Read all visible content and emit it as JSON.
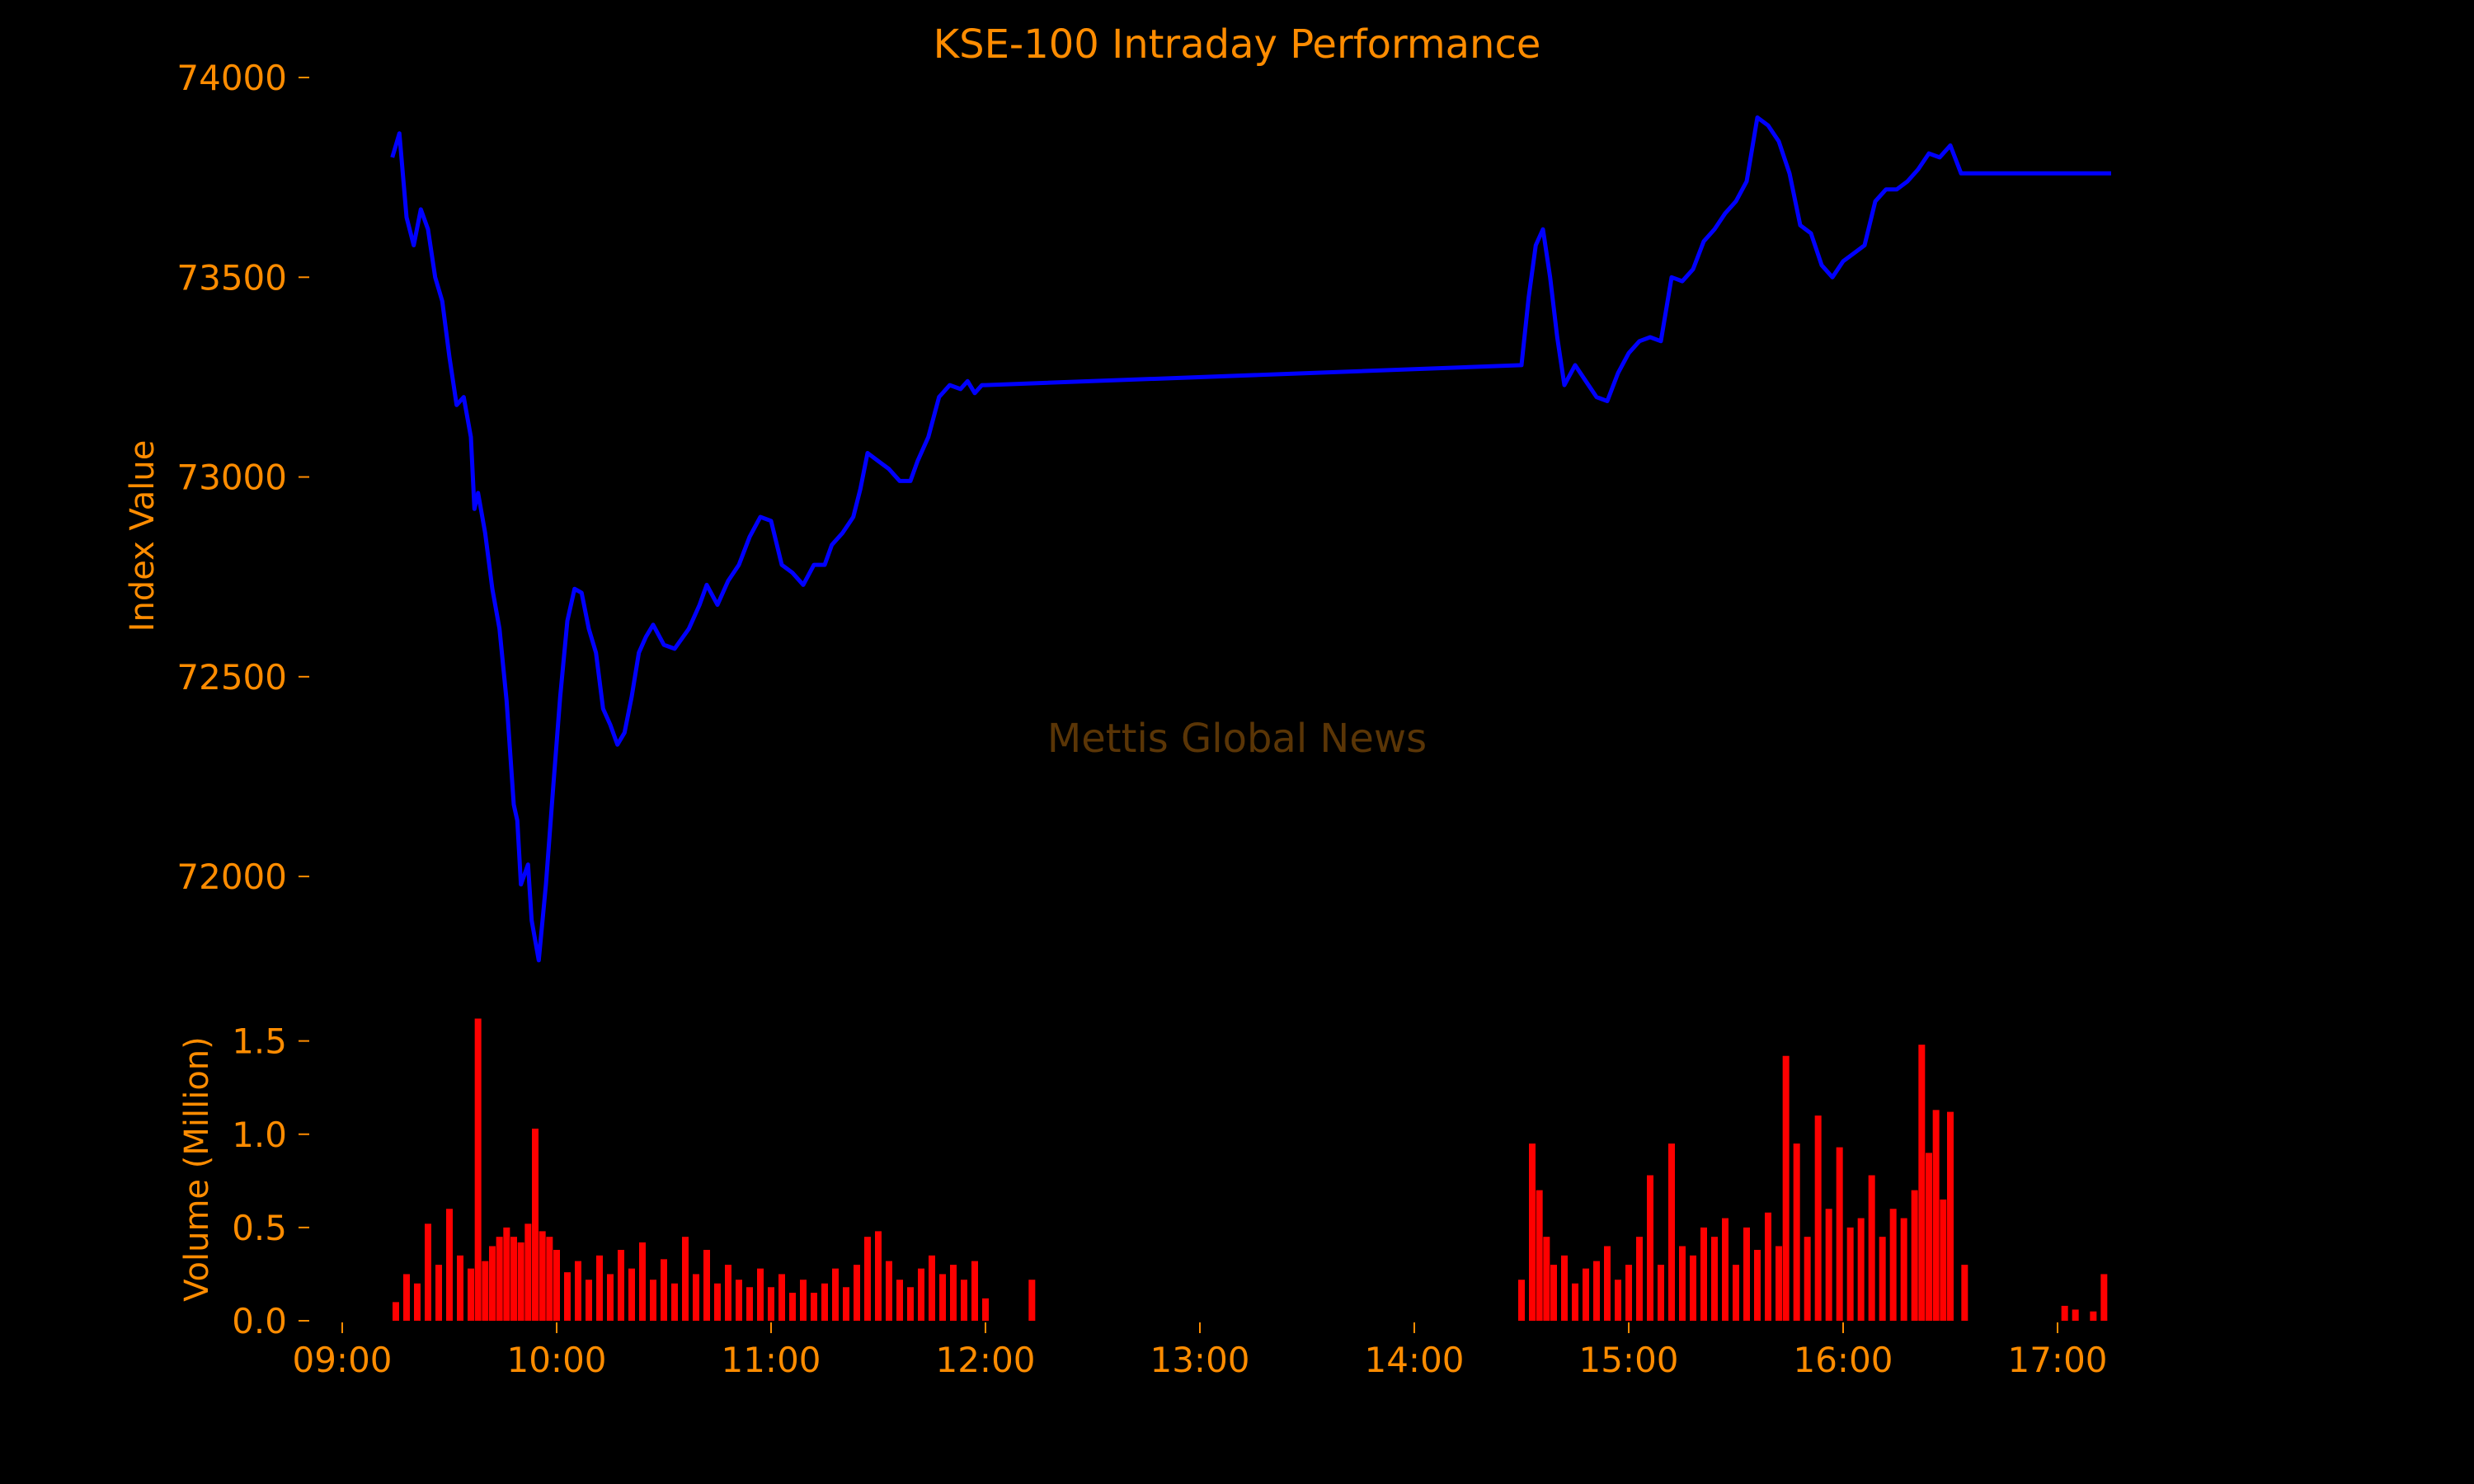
{
  "colors": {
    "background": "#000000",
    "text": "#ff8c00",
    "line": "#0000ff",
    "volume": "#ff0000",
    "watermark": "#5a3506"
  },
  "watermark": "Mettis Global News",
  "chart_data": [
    {
      "type": "line",
      "title": "KSE-100 Intraday Performance",
      "ylabel": "Index Value",
      "xlabel": "",
      "ylim": [
        71800,
        74000
      ],
      "yticks": [
        72000,
        72500,
        73000,
        73500,
        74000
      ],
      "xlim": [
        "09:00",
        "17:30"
      ],
      "grid": false,
      "series": [
        {
          "points": [
            [
              "09:14",
              73800
            ],
            [
              "09:16",
              73860
            ],
            [
              "09:18",
              73650
            ],
            [
              "09:20",
              73580
            ],
            [
              "09:22",
              73670
            ],
            [
              "09:24",
              73620
            ],
            [
              "09:26",
              73500
            ],
            [
              "09:28",
              73440
            ],
            [
              "09:30",
              73300
            ],
            [
              "09:32",
              73180
            ],
            [
              "09:34",
              73200
            ],
            [
              "09:36",
              73100
            ],
            [
              "09:37",
              72920
            ],
            [
              "09:38",
              72960
            ],
            [
              "09:40",
              72860
            ],
            [
              "09:42",
              72720
            ],
            [
              "09:44",
              72620
            ],
            [
              "09:46",
              72440
            ],
            [
              "09:48",
              72180
            ],
            [
              "09:49",
              72140
            ],
            [
              "09:50",
              71980
            ],
            [
              "09:52",
              72030
            ],
            [
              "09:53",
              71890
            ],
            [
              "09:55",
              71790
            ],
            [
              "09:57",
              71980
            ],
            [
              "09:59",
              72220
            ],
            [
              "10:01",
              72450
            ],
            [
              "10:03",
              72640
            ],
            [
              "10:05",
              72720
            ],
            [
              "10:07",
              72710
            ],
            [
              "10:09",
              72620
            ],
            [
              "10:11",
              72560
            ],
            [
              "10:13",
              72420
            ],
            [
              "10:15",
              72380
            ],
            [
              "10:17",
              72330
            ],
            [
              "10:19",
              72360
            ],
            [
              "10:21",
              72450
            ],
            [
              "10:23",
              72560
            ],
            [
              "10:25",
              72600
            ],
            [
              "10:27",
              72630
            ],
            [
              "10:30",
              72580
            ],
            [
              "10:33",
              72570
            ],
            [
              "10:37",
              72620
            ],
            [
              "10:40",
              72680
            ],
            [
              "10:42",
              72730
            ],
            [
              "10:45",
              72680
            ],
            [
              "10:48",
              72740
            ],
            [
              "10:51",
              72780
            ],
            [
              "10:54",
              72850
            ],
            [
              "10:57",
              72900
            ],
            [
              "11:00",
              72890
            ],
            [
              "11:03",
              72780
            ],
            [
              "11:06",
              72760
            ],
            [
              "11:09",
              72730
            ],
            [
              "11:12",
              72780
            ],
            [
              "11:15",
              72780
            ],
            [
              "11:17",
              72830
            ],
            [
              "11:20",
              72860
            ],
            [
              "11:23",
              72900
            ],
            [
              "11:25",
              72970
            ],
            [
              "11:27",
              73060
            ],
            [
              "11:30",
              73040
            ],
            [
              "11:33",
              73020
            ],
            [
              "11:36",
              72990
            ],
            [
              "11:39",
              72990
            ],
            [
              "11:41",
              73040
            ],
            [
              "11:44",
              73100
            ],
            [
              "11:47",
              73200
            ],
            [
              "11:50",
              73230
            ],
            [
              "11:53",
              73220
            ],
            [
              "11:55",
              73240
            ],
            [
              "11:57",
              73210
            ],
            [
              "11:59",
              73230
            ],
            [
              "12:00",
              73230
            ],
            [
              "14:30",
              73280
            ],
            [
              "14:32",
              73450
            ],
            [
              "14:34",
              73580
            ],
            [
              "14:36",
              73620
            ],
            [
              "14:38",
              73500
            ],
            [
              "14:40",
              73350
            ],
            [
              "14:42",
              73230
            ],
            [
              "14:45",
              73280
            ],
            [
              "14:48",
              73240
            ],
            [
              "14:51",
              73200
            ],
            [
              "14:54",
              73190
            ],
            [
              "14:57",
              73260
            ],
            [
              "15:00",
              73310
            ],
            [
              "15:03",
              73340
            ],
            [
              "15:06",
              73350
            ],
            [
              "15:09",
              73340
            ],
            [
              "15:12",
              73500
            ],
            [
              "15:15",
              73490
            ],
            [
              "15:18",
              73520
            ],
            [
              "15:21",
              73590
            ],
            [
              "15:24",
              73620
            ],
            [
              "15:27",
              73660
            ],
            [
              "15:30",
              73690
            ],
            [
              "15:33",
              73740
            ],
            [
              "15:36",
              73900
            ],
            [
              "15:39",
              73880
            ],
            [
              "15:42",
              73840
            ],
            [
              "15:45",
              73760
            ],
            [
              "15:48",
              73630
            ],
            [
              "15:51",
              73610
            ],
            [
              "15:54",
              73530
            ],
            [
              "15:57",
              73500
            ],
            [
              "16:00",
              73540
            ],
            [
              "16:03",
              73560
            ],
            [
              "16:06",
              73580
            ],
            [
              "16:09",
              73690
            ],
            [
              "16:12",
              73720
            ],
            [
              "16:15",
              73720
            ],
            [
              "16:18",
              73740
            ],
            [
              "16:21",
              73770
            ],
            [
              "16:24",
              73810
            ],
            [
              "16:27",
              73800
            ],
            [
              "16:30",
              73830
            ],
            [
              "16:33",
              73760
            ],
            [
              "17:15",
              73760
            ]
          ]
        }
      ]
    },
    {
      "type": "bar",
      "ylabel": "Volume (Million)",
      "xlabel": "",
      "ylim": [
        0,
        1.6
      ],
      "yticks": [
        0.0,
        0.5,
        1.0,
        1.5
      ],
      "xlim": [
        "09:00",
        "17:30"
      ],
      "xticks": [
        "09:00",
        "10:00",
        "11:00",
        "12:00",
        "13:00",
        "14:00",
        "15:00",
        "16:00",
        "17:00"
      ],
      "grid": false,
      "series": [
        {
          "points": [
            [
              "09:15",
              0.1
            ],
            [
              "09:18",
              0.25
            ],
            [
              "09:21",
              0.2
            ],
            [
              "09:24",
              0.52
            ],
            [
              "09:27",
              0.3
            ],
            [
              "09:30",
              0.6
            ],
            [
              "09:33",
              0.35
            ],
            [
              "09:36",
              0.28
            ],
            [
              "09:38",
              1.62
            ],
            [
              "09:40",
              0.32
            ],
            [
              "09:42",
              0.4
            ],
            [
              "09:44",
              0.45
            ],
            [
              "09:46",
              0.5
            ],
            [
              "09:48",
              0.45
            ],
            [
              "09:50",
              0.42
            ],
            [
              "09:52",
              0.52
            ],
            [
              "09:54",
              1.03
            ],
            [
              "09:56",
              0.48
            ],
            [
              "09:58",
              0.45
            ],
            [
              "10:00",
              0.38
            ],
            [
              "10:03",
              0.26
            ],
            [
              "10:06",
              0.32
            ],
            [
              "10:09",
              0.22
            ],
            [
              "10:12",
              0.35
            ],
            [
              "10:15",
              0.25
            ],
            [
              "10:18",
              0.38
            ],
            [
              "10:21",
              0.28
            ],
            [
              "10:24",
              0.42
            ],
            [
              "10:27",
              0.22
            ],
            [
              "10:30",
              0.33
            ],
            [
              "10:33",
              0.2
            ],
            [
              "10:36",
              0.45
            ],
            [
              "10:39",
              0.25
            ],
            [
              "10:42",
              0.38
            ],
            [
              "10:45",
              0.2
            ],
            [
              "10:48",
              0.3
            ],
            [
              "10:51",
              0.22
            ],
            [
              "10:54",
              0.18
            ],
            [
              "10:57",
              0.28
            ],
            [
              "11:00",
              0.18
            ],
            [
              "11:03",
              0.25
            ],
            [
              "11:06",
              0.15
            ],
            [
              "11:09",
              0.22
            ],
            [
              "11:12",
              0.15
            ],
            [
              "11:15",
              0.2
            ],
            [
              "11:18",
              0.28
            ],
            [
              "11:21",
              0.18
            ],
            [
              "11:24",
              0.3
            ],
            [
              "11:27",
              0.45
            ],
            [
              "11:30",
              0.48
            ],
            [
              "11:33",
              0.32
            ],
            [
              "11:36",
              0.22
            ],
            [
              "11:39",
              0.18
            ],
            [
              "11:42",
              0.28
            ],
            [
              "11:45",
              0.35
            ],
            [
              "11:48",
              0.25
            ],
            [
              "11:51",
              0.3
            ],
            [
              "11:54",
              0.22
            ],
            [
              "11:57",
              0.32
            ],
            [
              "12:00",
              0.12
            ],
            [
              "12:13",
              0.22
            ],
            [
              "14:30",
              0.22
            ],
            [
              "14:33",
              0.95
            ],
            [
              "14:35",
              0.7
            ],
            [
              "14:37",
              0.45
            ],
            [
              "14:39",
              0.3
            ],
            [
              "14:42",
              0.35
            ],
            [
              "14:45",
              0.2
            ],
            [
              "14:48",
              0.28
            ],
            [
              "14:51",
              0.32
            ],
            [
              "14:54",
              0.4
            ],
            [
              "14:57",
              0.22
            ],
            [
              "15:00",
              0.3
            ],
            [
              "15:03",
              0.45
            ],
            [
              "15:06",
              0.78
            ],
            [
              "15:09",
              0.3
            ],
            [
              "15:12",
              0.95
            ],
            [
              "15:15",
              0.4
            ],
            [
              "15:18",
              0.35
            ],
            [
              "15:21",
              0.5
            ],
            [
              "15:24",
              0.45
            ],
            [
              "15:27",
              0.55
            ],
            [
              "15:30",
              0.3
            ],
            [
              "15:33",
              0.5
            ],
            [
              "15:36",
              0.38
            ],
            [
              "15:39",
              0.58
            ],
            [
              "15:42",
              0.4
            ],
            [
              "15:44",
              1.42
            ],
            [
              "15:47",
              0.95
            ],
            [
              "15:50",
              0.45
            ],
            [
              "15:53",
              1.1
            ],
            [
              "15:56",
              0.6
            ],
            [
              "15:59",
              0.93
            ],
            [
              "16:02",
              0.5
            ],
            [
              "16:05",
              0.55
            ],
            [
              "16:08",
              0.78
            ],
            [
              "16:11",
              0.45
            ],
            [
              "16:14",
              0.6
            ],
            [
              "16:17",
              0.55
            ],
            [
              "16:20",
              0.7
            ],
            [
              "16:22",
              1.48
            ],
            [
              "16:24",
              0.9
            ],
            [
              "16:26",
              1.13
            ],
            [
              "16:28",
              0.65
            ],
            [
              "16:30",
              1.12
            ],
            [
              "16:34",
              0.3
            ],
            [
              "17:02",
              0.08
            ],
            [
              "17:05",
              0.06
            ],
            [
              "17:10",
              0.05
            ],
            [
              "17:13",
              0.25
            ]
          ]
        }
      ]
    }
  ]
}
